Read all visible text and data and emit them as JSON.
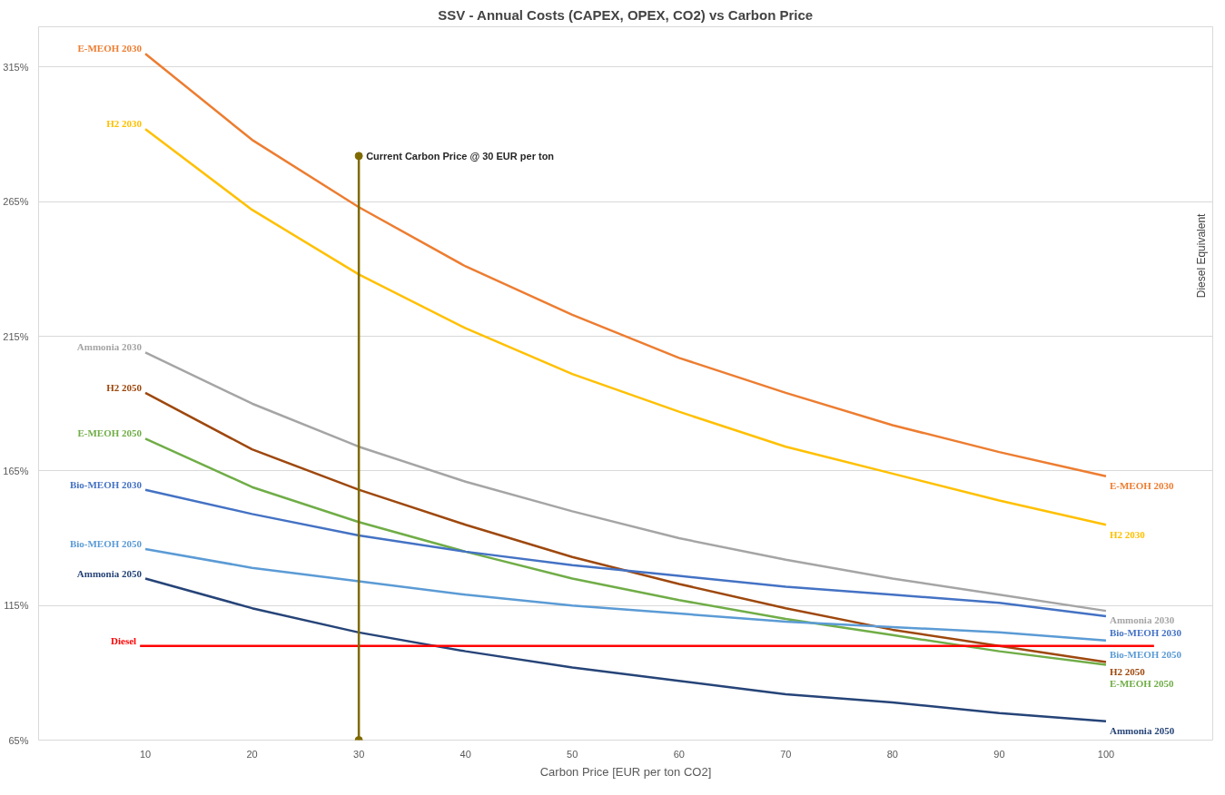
{
  "chart_data": {
    "type": "line",
    "title": "SSV - Annual Costs (CAPEX, OPEX, CO2) vs Carbon Price",
    "xlabel": "Carbon Price [EUR per ton CO2]",
    "x": [
      10,
      20,
      30,
      40,
      50,
      60,
      70,
      80,
      90,
      100
    ],
    "xlim": [
      0,
      110
    ],
    "xticks": [
      10,
      20,
      30,
      40,
      50,
      60,
      70,
      80,
      90,
      100
    ],
    "ylim": [
      65,
      330
    ],
    "yticks": [
      {
        "value": 65,
        "label": "65%"
      },
      {
        "value": 115,
        "label": "115%"
      },
      {
        "value": 165,
        "label": "165%"
      },
      {
        "value": 215,
        "label": "215%"
      },
      {
        "value": 265,
        "label": "265%"
      },
      {
        "value": 315,
        "label": "315%"
      }
    ],
    "grid": "y",
    "marker": "none",
    "series": [
      {
        "name": "E-MEOH 2030",
        "color": "#ed7d31",
        "values": [
          320,
          288,
          263,
          241,
          223,
          207,
          194,
          182,
          172,
          163
        ]
      },
      {
        "name": "H2 2030",
        "color": "#ffc000",
        "values": [
          292,
          262,
          238,
          218,
          201,
          187,
          174,
          164,
          154,
          145
        ]
      },
      {
        "name": "Ammonia 2030",
        "color": "#a5a5a5",
        "values": [
          209,
          190,
          174,
          161,
          150,
          140,
          132,
          125,
          119,
          113
        ]
      },
      {
        "name": "H2 2050",
        "color": "#9e480e",
        "values": [
          194,
          173,
          158,
          145,
          133,
          123,
          114,
          106,
          100,
          94
        ]
      },
      {
        "name": "E-MEOH 2050",
        "color": "#70ad47",
        "values": [
          177,
          159,
          146,
          135,
          125,
          117,
          110,
          104,
          98,
          93
        ]
      },
      {
        "name": "Bio-MEOH 2030",
        "color": "#4472c4",
        "values": [
          158,
          149,
          141,
          135,
          130,
          126,
          122,
          119,
          116,
          111
        ]
      },
      {
        "name": "Bio-MEOH 2050",
        "color": "#5b9bd5",
        "values": [
          136,
          129,
          124,
          119,
          115,
          112,
          109,
          107,
          105,
          102
        ]
      },
      {
        "name": "Ammonia 2050",
        "color": "#264478",
        "values": [
          125,
          114,
          105,
          98,
          92,
          87,
          82,
          79,
          75,
          72
        ]
      },
      {
        "name": "Diesel",
        "color": "#ff0000",
        "x": [
          9.5,
          104.5
        ],
        "values": [
          100,
          100
        ]
      },
      {
        "color": "#7f6a00",
        "x": [
          30,
          30
        ],
        "values": [
          65,
          282
        ],
        "marker": "circle"
      }
    ],
    "annotations": [
      {
        "text": "Current Carbon Price @ 30 EUR per ton",
        "x": 30,
        "y": 282
      },
      "Diesel Equivalent"
    ]
  }
}
